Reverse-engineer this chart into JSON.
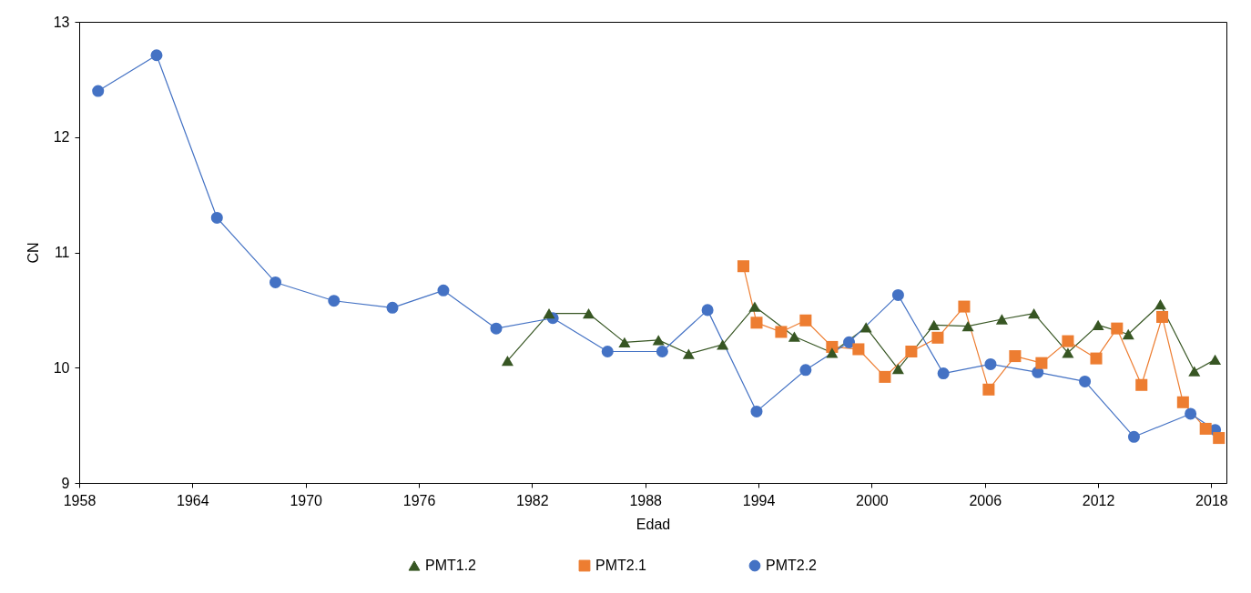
{
  "chart_data": {
    "type": "line",
    "xlabel": "Edad",
    "ylabel": "CN",
    "xlim": [
      1958,
      2018.8
    ],
    "xticks": [
      1958,
      1964,
      1970,
      1976,
      1982,
      1988,
      1994,
      2000,
      2006,
      2012,
      2018
    ],
    "ylim": [
      9,
      13
    ],
    "yticks": [
      9,
      10,
      11,
      12,
      13
    ],
    "grid": false,
    "legend": "bottom",
    "series": [
      {
        "name": "PMT1.2",
        "color": "#375623",
        "marker": "triangle",
        "x": [
          1980.7,
          1982.9,
          1985.0,
          1986.9,
          1988.7,
          1990.3,
          1992.1,
          1993.8,
          1995.9,
          1997.9,
          1999.7,
          2001.4,
          2003.3,
          2005.1,
          2006.9,
          2008.6,
          2010.4,
          2012.0,
          2013.6,
          2015.3,
          2017.1,
          2018.2
        ],
        "values": [
          10.06,
          10.47,
          10.47,
          10.22,
          10.24,
          10.12,
          10.2,
          10.53,
          10.27,
          10.13,
          10.35,
          9.99,
          10.37,
          10.36,
          10.42,
          10.47,
          10.13,
          10.37,
          10.29,
          10.55,
          9.97,
          10.07
        ]
      },
      {
        "name": "PMT2.1",
        "color": "#ed7d31",
        "marker": "square",
        "x": [
          1993.2,
          1993.9,
          1995.2,
          1996.5,
          1997.9,
          1999.3,
          2000.7,
          2002.1,
          2003.5,
          2004.9,
          2006.2,
          2007.6,
          2009.0,
          2010.4,
          2011.9,
          2013.0,
          2014.3,
          2015.4,
          2016.5,
          2017.7,
          2018.4
        ],
        "values": [
          10.88,
          10.39,
          10.31,
          10.41,
          10.18,
          10.16,
          9.92,
          10.14,
          10.26,
          10.53,
          9.81,
          10.1,
          10.04,
          10.23,
          10.08,
          10.34,
          9.85,
          10.44,
          9.7,
          9.47,
          9.39
        ]
      },
      {
        "name": "PMT2.2",
        "color": "#4472c4",
        "marker": "circle",
        "x": [
          1959.0,
          1962.1,
          1965.3,
          1968.4,
          1971.5,
          1974.6,
          1977.3,
          1980.1,
          1983.1,
          1986.0,
          1988.9,
          1991.3,
          1993.9,
          1996.5,
          1998.8,
          2001.4,
          2003.8,
          2006.3,
          2008.8,
          2011.3,
          2013.9,
          2016.9,
          2018.2
        ],
        "values": [
          12.4,
          12.71,
          11.3,
          10.74,
          10.58,
          10.52,
          10.67,
          10.34,
          10.43,
          10.14,
          10.14,
          10.5,
          9.62,
          9.98,
          10.22,
          10.63,
          9.95,
          10.03,
          9.96,
          9.88,
          9.4,
          9.6,
          9.46
        ]
      }
    ]
  }
}
